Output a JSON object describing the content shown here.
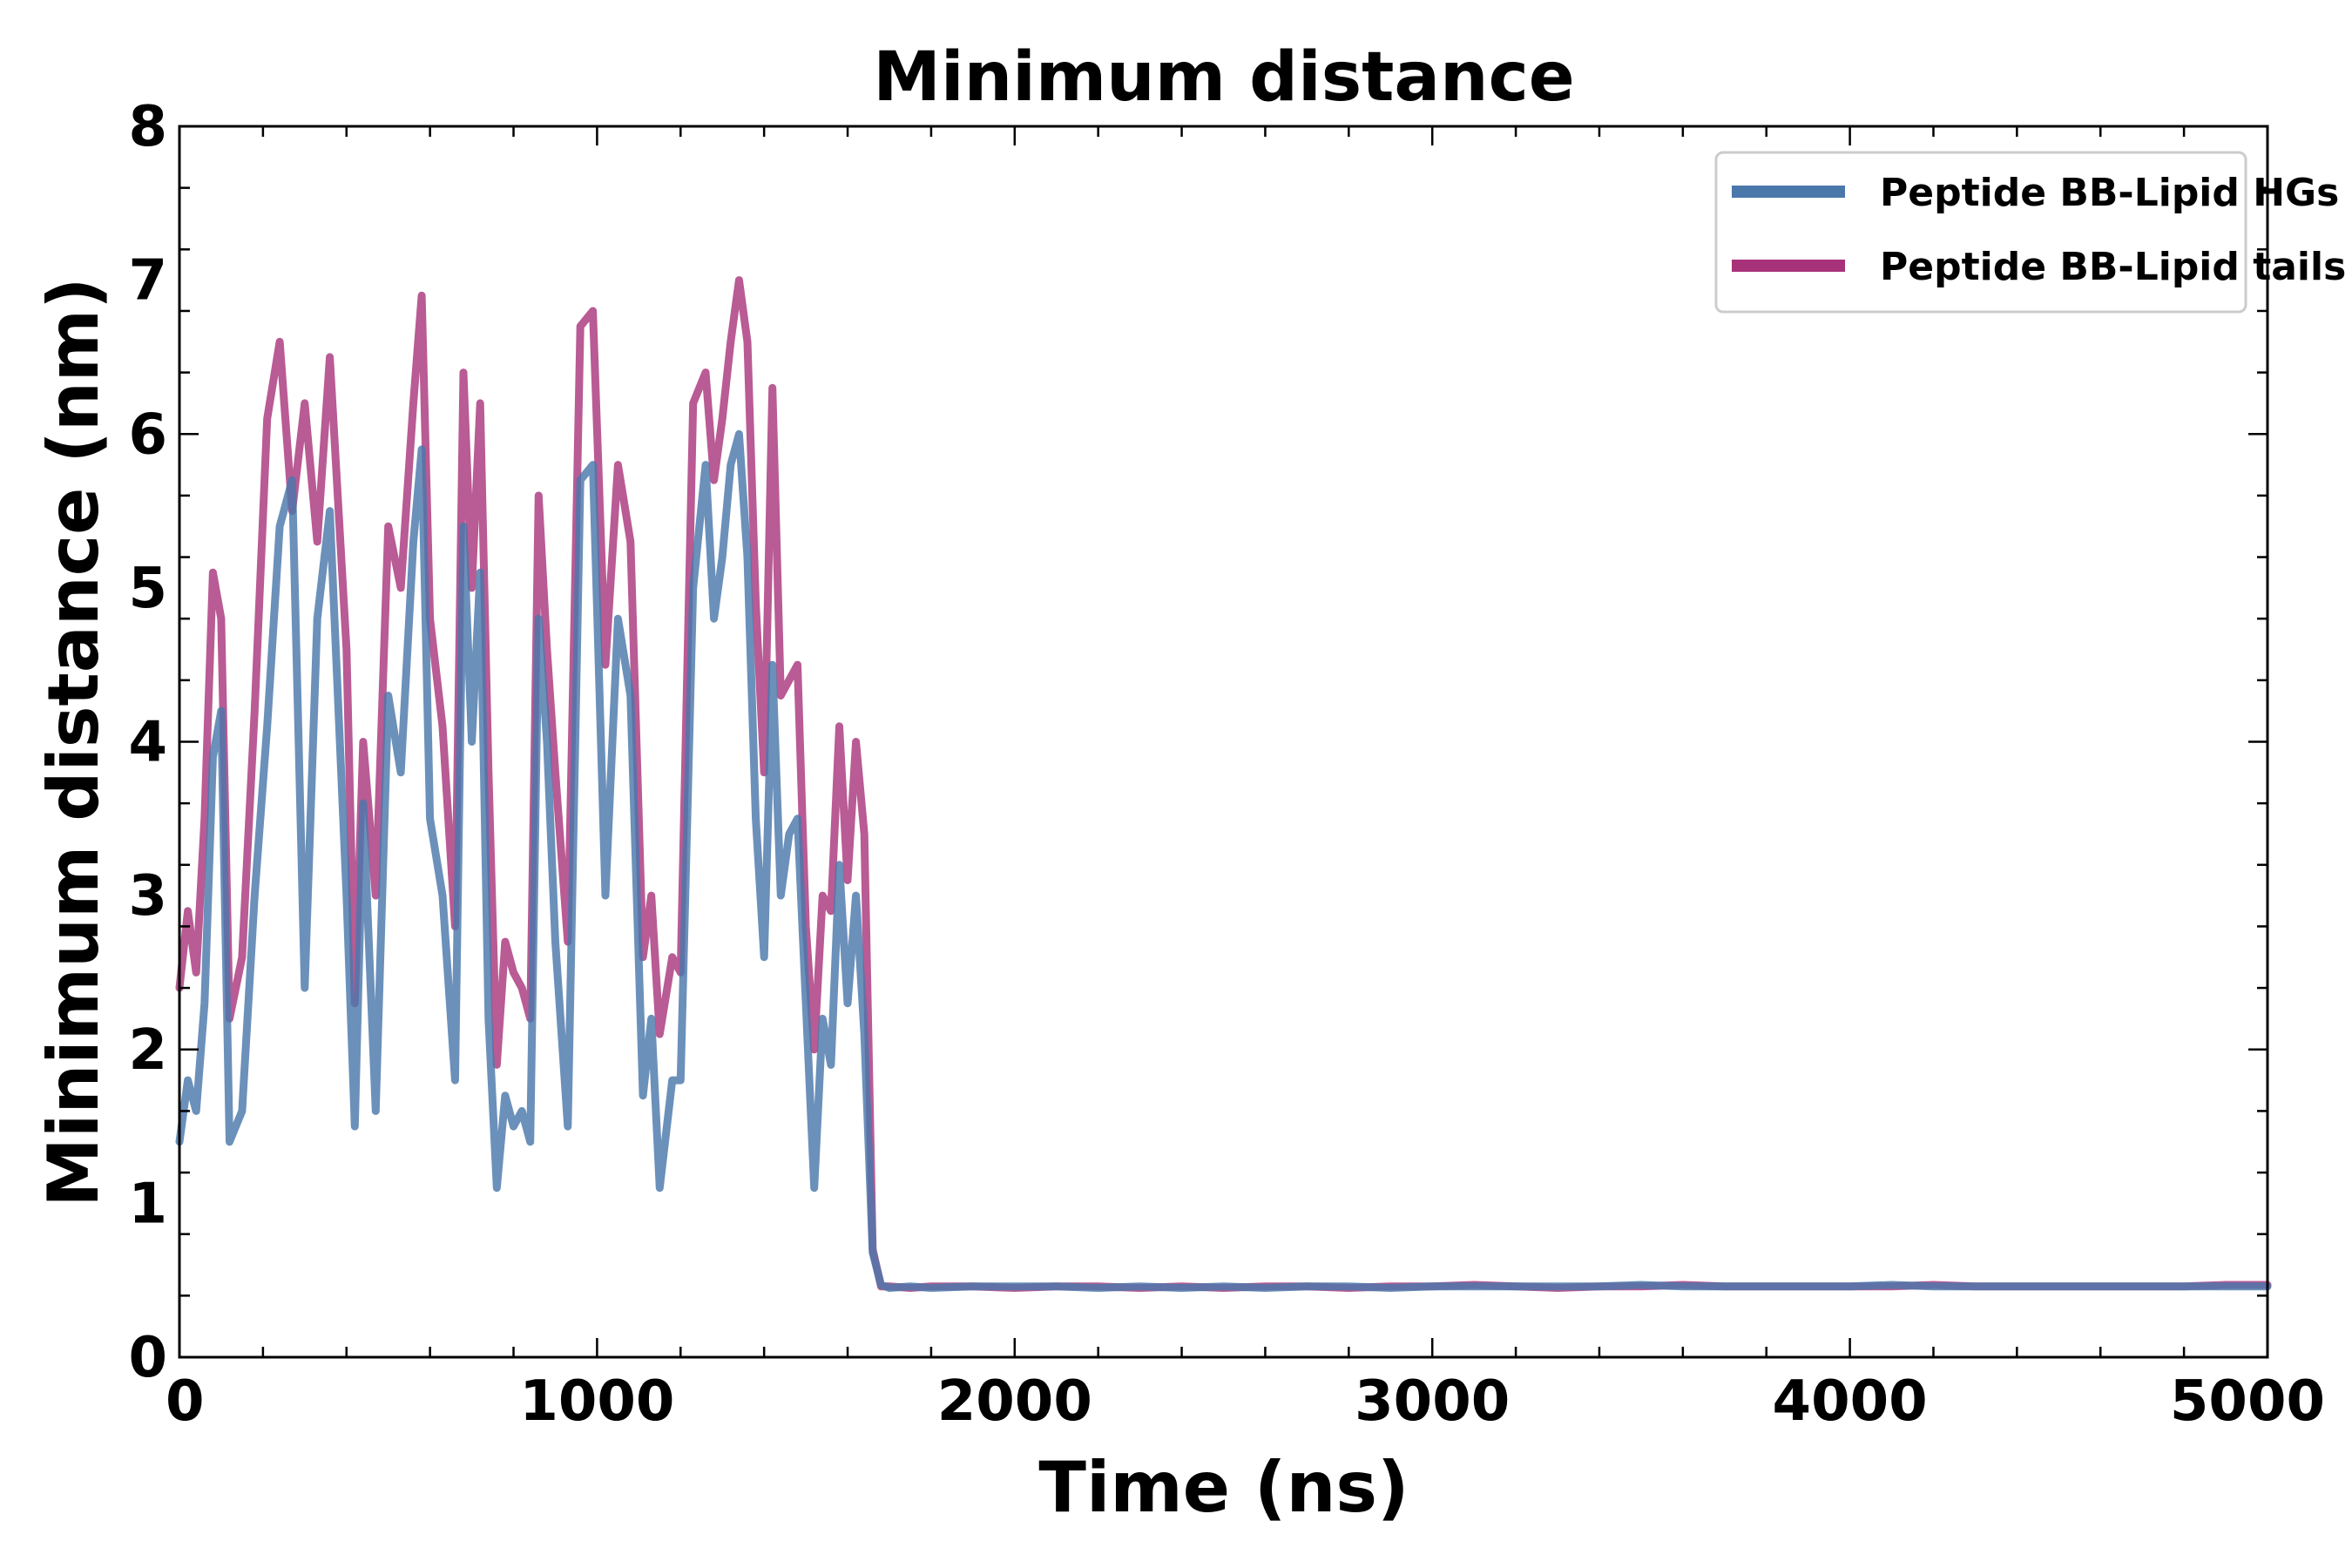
{
  "chart_data": {
    "type": "line",
    "title": "Minimum distance",
    "xlabel": "Time (ns)",
    "ylabel": "Minimum distance (nm)",
    "xlim": [
      0,
      5000
    ],
    "ylim": [
      0,
      8
    ],
    "xticks": [
      0,
      1000,
      2000,
      3000,
      4000,
      5000
    ],
    "yticks": [
      0,
      1,
      2,
      3,
      4,
      5,
      6,
      7,
      8
    ],
    "x_minor_step": 200,
    "y_minor_step": 0.4,
    "grid": false,
    "legend_position": "top-right",
    "series": [
      {
        "name": "Peptide BB-Lipid HGs",
        "color": "#4a78ab",
        "x": [
          0,
          20,
          40,
          60,
          80,
          100,
          120,
          150,
          180,
          210,
          240,
          270,
          300,
          330,
          360,
          400,
          420,
          440,
          470,
          500,
          530,
          560,
          580,
          600,
          630,
          660,
          680,
          700,
          720,
          740,
          760,
          780,
          800,
          820,
          840,
          860,
          880,
          900,
          930,
          960,
          990,
          1020,
          1050,
          1080,
          1110,
          1130,
          1150,
          1180,
          1200,
          1230,
          1260,
          1280,
          1300,
          1320,
          1340,
          1360,
          1380,
          1400,
          1420,
          1440,
          1460,
          1480,
          1500,
          1520,
          1540,
          1560,
          1580,
          1600,
          1620,
          1640,
          1660,
          1680,
          1700,
          1750,
          1800,
          1900,
          2000,
          2100,
          2200,
          2300,
          2400,
          2500,
          2600,
          2700,
          2800,
          2900,
          3000,
          3100,
          3200,
          3300,
          3400,
          3500,
          3600,
          3700,
          3800,
          3900,
          4000,
          4100,
          4200,
          4300,
          4400,
          4500,
          4600,
          4700,
          4800,
          4900,
          5000
        ],
        "values": [
          1.4,
          1.8,
          1.6,
          2.3,
          3.9,
          4.2,
          1.4,
          1.6,
          3.0,
          4.1,
          5.4,
          5.7,
          2.4,
          4.8,
          5.5,
          3.0,
          1.5,
          3.6,
          1.6,
          4.3,
          3.8,
          5.3,
          5.9,
          3.5,
          3.0,
          1.8,
          5.4,
          4.0,
          5.1,
          2.2,
          1.1,
          1.7,
          1.5,
          1.6,
          1.4,
          4.8,
          4.0,
          2.7,
          1.5,
          5.7,
          5.8,
          3.0,
          4.8,
          4.3,
          1.7,
          2.2,
          1.1,
          1.8,
          1.8,
          5.0,
          5.8,
          4.8,
          5.2,
          5.8,
          6.0,
          5.2,
          3.5,
          2.6,
          4.5,
          3.0,
          3.4,
          3.5,
          2.3,
          1.1,
          2.2,
          1.9,
          3.2,
          2.3,
          3.0,
          2.1,
          0.68,
          0.47,
          0.45,
          0.46,
          0.45,
          0.46,
          0.46,
          0.46,
          0.45,
          0.46,
          0.45,
          0.46,
          0.45,
          0.46,
          0.46,
          0.45,
          0.46,
          0.46,
          0.46,
          0.46,
          0.46,
          0.47,
          0.46,
          0.46,
          0.46,
          0.46,
          0.46,
          0.47,
          0.46,
          0.46,
          0.46,
          0.46,
          0.46,
          0.46,
          0.46,
          0.46,
          0.46
        ]
      },
      {
        "name": "Peptide BB-Lipid tails",
        "color": "#a83279",
        "x": [
          0,
          20,
          40,
          60,
          80,
          100,
          120,
          150,
          180,
          210,
          240,
          270,
          300,
          330,
          360,
          400,
          420,
          440,
          470,
          500,
          530,
          560,
          580,
          600,
          630,
          660,
          680,
          700,
          720,
          740,
          760,
          780,
          800,
          820,
          840,
          860,
          880,
          900,
          930,
          960,
          990,
          1020,
          1050,
          1080,
          1110,
          1130,
          1150,
          1180,
          1200,
          1230,
          1260,
          1280,
          1300,
          1320,
          1340,
          1360,
          1380,
          1400,
          1420,
          1440,
          1460,
          1480,
          1500,
          1520,
          1540,
          1560,
          1580,
          1600,
          1620,
          1640,
          1660,
          1680,
          1700,
          1750,
          1800,
          1900,
          2000,
          2100,
          2200,
          2300,
          2400,
          2500,
          2600,
          2700,
          2800,
          2900,
          3000,
          3100,
          3200,
          3300,
          3400,
          3500,
          3600,
          3700,
          3800,
          3900,
          4000,
          4100,
          4200,
          4300,
          4400,
          4500,
          4600,
          4700,
          4800,
          4900,
          5000
        ],
        "values": [
          2.4,
          2.9,
          2.5,
          3.5,
          5.1,
          4.8,
          2.2,
          2.6,
          4.2,
          6.1,
          6.6,
          5.5,
          6.2,
          5.3,
          6.5,
          4.6,
          2.3,
          4.0,
          3.0,
          5.4,
          5.0,
          6.2,
          6.9,
          4.8,
          4.1,
          2.8,
          6.4,
          5.0,
          6.2,
          3.8,
          1.9,
          2.7,
          2.5,
          2.4,
          2.2,
          5.6,
          4.6,
          3.8,
          2.7,
          6.7,
          6.8,
          4.5,
          5.8,
          5.3,
          2.6,
          3.0,
          2.1,
          2.6,
          2.5,
          6.2,
          6.4,
          5.7,
          6.1,
          6.6,
          7.0,
          6.6,
          4.9,
          3.8,
          6.3,
          4.3,
          4.4,
          4.5,
          2.8,
          2.0,
          3.0,
          2.9,
          4.1,
          3.1,
          4.0,
          3.4,
          0.7,
          0.46,
          0.46,
          0.45,
          0.46,
          0.46,
          0.45,
          0.46,
          0.46,
          0.45,
          0.46,
          0.45,
          0.46,
          0.46,
          0.45,
          0.46,
          0.46,
          0.47,
          0.46,
          0.45,
          0.46,
          0.46,
          0.47,
          0.46,
          0.46,
          0.46,
          0.46,
          0.46,
          0.47,
          0.46,
          0.46,
          0.46,
          0.46,
          0.46,
          0.46,
          0.47,
          0.47
        ]
      }
    ]
  }
}
